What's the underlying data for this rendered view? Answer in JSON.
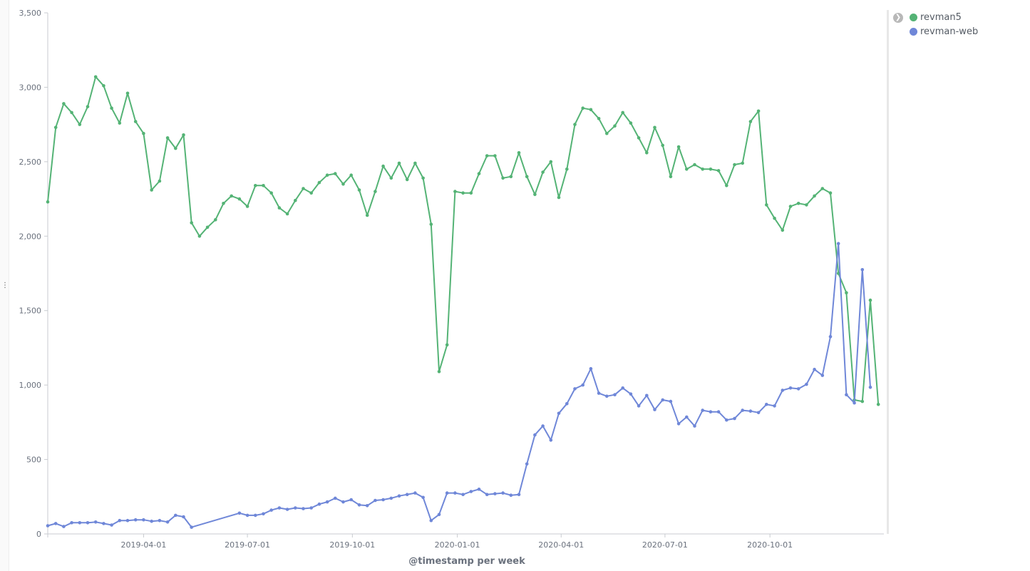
{
  "chart_data": {
    "type": "line",
    "xlabel": "@timestamp per week",
    "ylabel": "",
    "ylim": [
      0,
      3500
    ],
    "y_ticks": [
      0,
      500,
      1000,
      1500,
      2000,
      2500,
      3000,
      3500
    ],
    "y_tick_labels": [
      "0",
      "500",
      "1,000",
      "1,500",
      "2,000",
      "2,500",
      "3,000",
      "3,500"
    ],
    "xlim": [
      "2019-01-07",
      "2020-12-28"
    ],
    "x_ticks": [
      "2019-04-01",
      "2019-07-01",
      "2019-10-01",
      "2020-01-01",
      "2020-04-01",
      "2020-07-01",
      "2020-10-01"
    ],
    "grid": false,
    "legend_position": "right",
    "series": [
      {
        "name": "revman5",
        "color": "#54b375",
        "points": [
          [
            "2019-01-07",
            2230
          ],
          [
            "2019-01-14",
            2730
          ],
          [
            "2019-01-21",
            2890
          ],
          [
            "2019-01-28",
            2830
          ],
          [
            "2019-02-04",
            2750
          ],
          [
            "2019-02-11",
            2870
          ],
          [
            "2019-02-18",
            3070
          ],
          [
            "2019-02-25",
            3010
          ],
          [
            "2019-03-04",
            2860
          ],
          [
            "2019-03-11",
            2760
          ],
          [
            "2019-03-18",
            2960
          ],
          [
            "2019-03-25",
            2770
          ],
          [
            "2019-04-01",
            2690
          ],
          [
            "2019-04-08",
            2310
          ],
          [
            "2019-04-15",
            2370
          ],
          [
            "2019-04-22",
            2660
          ],
          [
            "2019-04-29",
            2590
          ],
          [
            "2019-05-06",
            2680
          ],
          [
            "2019-05-13",
            2090
          ],
          [
            "2019-05-20",
            2000
          ],
          [
            "2019-05-27",
            2060
          ],
          [
            "2019-06-03",
            2110
          ],
          [
            "2019-06-10",
            2220
          ],
          [
            "2019-06-17",
            2270
          ],
          [
            "2019-06-24",
            2250
          ],
          [
            "2019-07-01",
            2200
          ],
          [
            "2019-07-08",
            2340
          ],
          [
            "2019-07-15",
            2340
          ],
          [
            "2019-07-22",
            2290
          ],
          [
            "2019-07-29",
            2190
          ],
          [
            "2019-08-05",
            2150
          ],
          [
            "2019-08-12",
            2240
          ],
          [
            "2019-08-19",
            2320
          ],
          [
            "2019-08-26",
            2290
          ],
          [
            "2019-09-02",
            2360
          ],
          [
            "2019-09-09",
            2410
          ],
          [
            "2019-09-16",
            2420
          ],
          [
            "2019-09-23",
            2350
          ],
          [
            "2019-09-30",
            2410
          ],
          [
            "2019-10-07",
            2310
          ],
          [
            "2019-10-14",
            2140
          ],
          [
            "2019-10-21",
            2300
          ],
          [
            "2019-10-28",
            2470
          ],
          [
            "2019-11-04",
            2390
          ],
          [
            "2019-11-11",
            2490
          ],
          [
            "2019-11-18",
            2380
          ],
          [
            "2019-11-25",
            2490
          ],
          [
            "2019-12-02",
            2390
          ],
          [
            "2019-12-09",
            2080
          ],
          [
            "2019-12-16",
            1090
          ],
          [
            "2019-12-23",
            1270
          ],
          [
            "2019-12-30",
            2300
          ],
          [
            "2020-01-06",
            2290
          ],
          [
            "2020-01-13",
            2290
          ],
          [
            "2020-01-20",
            2420
          ],
          [
            "2020-01-27",
            2540
          ],
          [
            "2020-02-03",
            2540
          ],
          [
            "2020-02-10",
            2390
          ],
          [
            "2020-02-17",
            2400
          ],
          [
            "2020-02-24",
            2560
          ],
          [
            "2020-03-02",
            2400
          ],
          [
            "2020-03-09",
            2280
          ],
          [
            "2020-03-16",
            2430
          ],
          [
            "2020-03-23",
            2500
          ],
          [
            "2020-03-30",
            2260
          ],
          [
            "2020-04-06",
            2450
          ],
          [
            "2020-04-13",
            2750
          ],
          [
            "2020-04-20",
            2860
          ],
          [
            "2020-04-27",
            2850
          ],
          [
            "2020-05-04",
            2790
          ],
          [
            "2020-05-11",
            2690
          ],
          [
            "2020-05-18",
            2740
          ],
          [
            "2020-05-25",
            2830
          ],
          [
            "2020-06-01",
            2760
          ],
          [
            "2020-06-08",
            2660
          ],
          [
            "2020-06-15",
            2560
          ],
          [
            "2020-06-22",
            2730
          ],
          [
            "2020-06-29",
            2610
          ],
          [
            "2020-07-06",
            2400
          ],
          [
            "2020-07-13",
            2600
          ],
          [
            "2020-07-20",
            2450
          ],
          [
            "2020-07-27",
            2480
          ],
          [
            "2020-08-03",
            2450
          ],
          [
            "2020-08-10",
            2450
          ],
          [
            "2020-08-17",
            2440
          ],
          [
            "2020-08-24",
            2340
          ],
          [
            "2020-08-31",
            2480
          ],
          [
            "2020-09-07",
            2490
          ],
          [
            "2020-09-14",
            2770
          ],
          [
            "2020-09-21",
            2840
          ],
          [
            "2020-09-28",
            2210
          ],
          [
            "2020-10-05",
            2120
          ],
          [
            "2020-10-12",
            2040
          ],
          [
            "2020-10-19",
            2200
          ],
          [
            "2020-10-26",
            2220
          ],
          [
            "2020-11-02",
            2210
          ],
          [
            "2020-11-09",
            2270
          ],
          [
            "2020-11-16",
            2320
          ],
          [
            "2020-11-23",
            2290
          ],
          [
            "2020-11-30",
            1750
          ],
          [
            "2020-12-07",
            1620
          ],
          [
            "2020-12-14",
            900
          ],
          [
            "2020-12-21",
            890
          ],
          [
            "2020-12-28",
            1570
          ],
          [
            "2021-01-04",
            870
          ]
        ]
      },
      {
        "name": "revman-web",
        "color": "#6f87d8",
        "points": [
          [
            "2019-01-07",
            55
          ],
          [
            "2019-01-14",
            70
          ],
          [
            "2019-01-21",
            50
          ],
          [
            "2019-01-28",
            75
          ],
          [
            "2019-02-04",
            75
          ],
          [
            "2019-02-11",
            75
          ],
          [
            "2019-02-18",
            80
          ],
          [
            "2019-02-25",
            70
          ],
          [
            "2019-03-04",
            60
          ],
          [
            "2019-03-11",
            90
          ],
          [
            "2019-03-18",
            90
          ],
          [
            "2019-03-25",
            95
          ],
          [
            "2019-04-01",
            95
          ],
          [
            "2019-04-08",
            85
          ],
          [
            "2019-04-15",
            90
          ],
          [
            "2019-04-22",
            80
          ],
          [
            "2019-04-29",
            125
          ],
          [
            "2019-05-06",
            115
          ],
          [
            "2019-05-13",
            45
          ],
          [
            "2019-06-24",
            140
          ],
          [
            "2019-07-01",
            125
          ],
          [
            "2019-07-08",
            125
          ],
          [
            "2019-07-15",
            135
          ],
          [
            "2019-07-22",
            160
          ],
          [
            "2019-07-29",
            175
          ],
          [
            "2019-08-05",
            165
          ],
          [
            "2019-08-12",
            175
          ],
          [
            "2019-08-19",
            170
          ],
          [
            "2019-08-26",
            175
          ],
          [
            "2019-09-02",
            200
          ],
          [
            "2019-09-09",
            215
          ],
          [
            "2019-09-16",
            240
          ],
          [
            "2019-09-23",
            215
          ],
          [
            "2019-09-30",
            230
          ],
          [
            "2019-10-07",
            195
          ],
          [
            "2019-10-14",
            190
          ],
          [
            "2019-10-21",
            225
          ],
          [
            "2019-10-28",
            230
          ],
          [
            "2019-11-04",
            240
          ],
          [
            "2019-11-11",
            255
          ],
          [
            "2019-11-18",
            265
          ],
          [
            "2019-11-25",
            275
          ],
          [
            "2019-12-02",
            245
          ],
          [
            "2019-12-09",
            90
          ],
          [
            "2019-12-16",
            130
          ],
          [
            "2019-12-23",
            275
          ],
          [
            "2019-12-30",
            275
          ],
          [
            "2020-01-06",
            265
          ],
          [
            "2020-01-13",
            285
          ],
          [
            "2020-01-20",
            300
          ],
          [
            "2020-01-27",
            265
          ],
          [
            "2020-02-03",
            270
          ],
          [
            "2020-02-10",
            275
          ],
          [
            "2020-02-17",
            260
          ],
          [
            "2020-02-24",
            265
          ],
          [
            "2020-03-02",
            470
          ],
          [
            "2020-03-09",
            665
          ],
          [
            "2020-03-16",
            725
          ],
          [
            "2020-03-23",
            630
          ],
          [
            "2020-03-30",
            810
          ],
          [
            "2020-04-06",
            875
          ],
          [
            "2020-04-13",
            975
          ],
          [
            "2020-04-20",
            1000
          ],
          [
            "2020-04-27",
            1110
          ],
          [
            "2020-05-04",
            945
          ],
          [
            "2020-05-11",
            925
          ],
          [
            "2020-05-18",
            935
          ],
          [
            "2020-05-25",
            980
          ],
          [
            "2020-06-01",
            940
          ],
          [
            "2020-06-08",
            860
          ],
          [
            "2020-06-15",
            930
          ],
          [
            "2020-06-22",
            835
          ],
          [
            "2020-06-29",
            900
          ],
          [
            "2020-07-06",
            890
          ],
          [
            "2020-07-13",
            740
          ],
          [
            "2020-07-20",
            785
          ],
          [
            "2020-07-27",
            725
          ],
          [
            "2020-08-03",
            830
          ],
          [
            "2020-08-10",
            820
          ],
          [
            "2020-08-17",
            820
          ],
          [
            "2020-08-24",
            765
          ],
          [
            "2020-08-31",
            775
          ],
          [
            "2020-09-07",
            830
          ],
          [
            "2020-09-14",
            825
          ],
          [
            "2020-09-21",
            815
          ],
          [
            "2020-09-28",
            870
          ],
          [
            "2020-10-05",
            860
          ],
          [
            "2020-10-12",
            965
          ],
          [
            "2020-10-19",
            980
          ],
          [
            "2020-10-26",
            975
          ],
          [
            "2020-11-02",
            1005
          ],
          [
            "2020-11-09",
            1105
          ],
          [
            "2020-11-16",
            1065
          ],
          [
            "2020-11-23",
            1325
          ],
          [
            "2020-11-30",
            1950
          ],
          [
            "2020-12-07",
            935
          ],
          [
            "2020-12-14",
            880
          ],
          [
            "2020-12-21",
            1775
          ],
          [
            "2020-12-28",
            985
          ]
        ]
      }
    ]
  },
  "legend": {
    "toggle_icon": "chevron-right-icon",
    "items": [
      {
        "label": "revman5",
        "color": "#54b375"
      },
      {
        "label": "revman-web",
        "color": "#6f87d8"
      }
    ]
  }
}
